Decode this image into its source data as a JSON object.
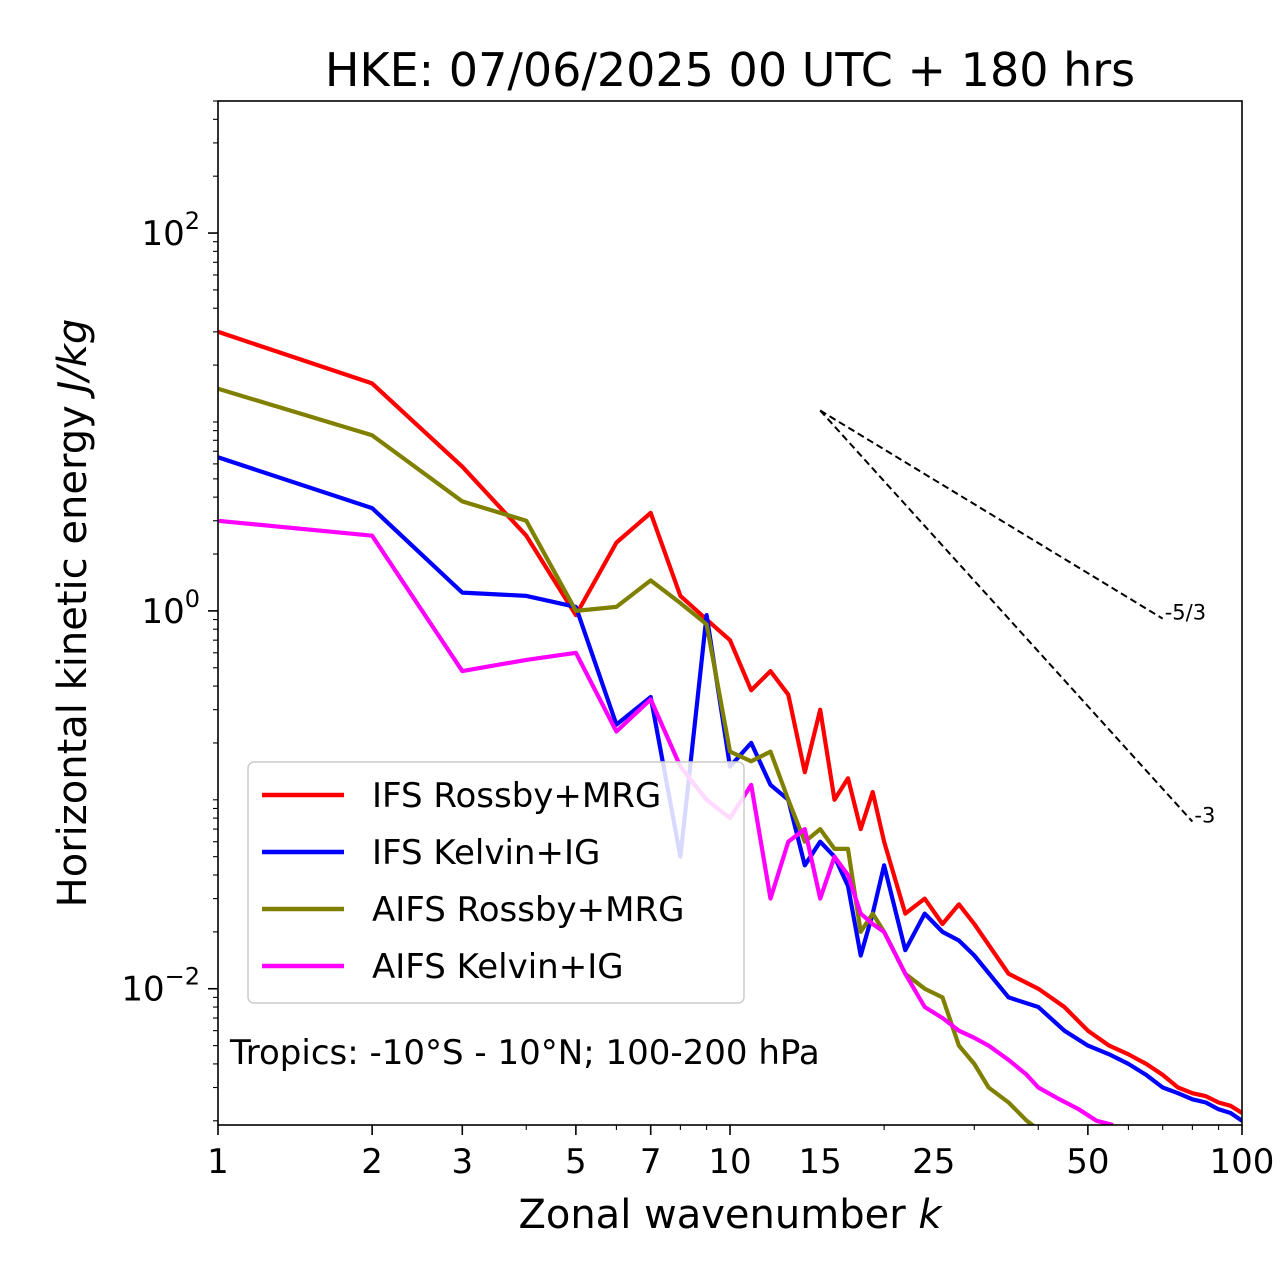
{
  "chart_data": {
    "type": "line",
    "title": "HKE: 07/06/2025 00 UTC + 180 hrs",
    "xlabel_main": "Zonal wavenumber ",
    "xlabel_var": "k",
    "ylabel_main": "Horizontal kinetic energy ",
    "ylabel_var": "J/kg",
    "xscale": "log",
    "yscale": "log",
    "xlim": [
      1,
      100
    ],
    "ylim": [
      0.0019,
      500
    ],
    "xticks": [
      1,
      2,
      3,
      5,
      7,
      10,
      15,
      25,
      50,
      100
    ],
    "xtick_labels": [
      "1",
      "2",
      "3",
      "5",
      "7",
      "10",
      "15",
      "25",
      "50",
      "100"
    ],
    "yticks": [
      {
        "value": 0.01,
        "base": "10",
        "exp": "−2"
      },
      {
        "value": 1,
        "base": "10",
        "exp": "0"
      },
      {
        "value": 100,
        "base": "10",
        "exp": "2"
      }
    ],
    "legend_position": "lower-left",
    "annotation": "Tropics: -10°S - 10°N; 100-200 hPa",
    "reference_lines": [
      {
        "label": "-5/3",
        "x": [
          15,
          70
        ],
        "y": [
          11.5,
          0.91
        ]
      },
      {
        "label": "-3",
        "x": [
          15,
          80
        ],
        "y": [
          11.5,
          0.0767
        ]
      }
    ],
    "series": [
      {
        "name": "IFS Rossby+MRG",
        "color": "#ff0000",
        "x": [
          1,
          2,
          3,
          4,
          5,
          6,
          7,
          8,
          9,
          10,
          11,
          12,
          13,
          14,
          15,
          16,
          17,
          18,
          19,
          20,
          22,
          24,
          26,
          28,
          30,
          35,
          40,
          45,
          50,
          55,
          60,
          65,
          70,
          75,
          80,
          85,
          90,
          95,
          100
        ],
        "y": [
          30,
          16,
          5.8,
          2.5,
          0.95,
          2.3,
          3.3,
          1.2,
          0.9,
          0.7,
          0.38,
          0.48,
          0.36,
          0.14,
          0.3,
          0.1,
          0.13,
          0.07,
          0.11,
          0.06,
          0.025,
          0.03,
          0.022,
          0.028,
          0.022,
          0.012,
          0.01,
          0.008,
          0.006,
          0.005,
          0.0045,
          0.004,
          0.0035,
          0.003,
          0.0028,
          0.0027,
          0.0025,
          0.0024,
          0.0022
        ]
      },
      {
        "name": "IFS Kelvin+IG",
        "color": "#0000ff",
        "x": [
          1,
          2,
          3,
          4,
          5,
          6,
          7,
          8,
          9,
          10,
          11,
          12,
          13,
          14,
          15,
          16,
          17,
          18,
          19,
          20,
          22,
          24,
          26,
          28,
          30,
          35,
          40,
          45,
          50,
          55,
          60,
          65,
          70,
          75,
          80,
          85,
          90,
          95,
          100
        ],
        "y": [
          6.5,
          3.5,
          1.25,
          1.2,
          1.05,
          0.25,
          0.35,
          0.05,
          0.95,
          0.15,
          0.2,
          0.12,
          0.1,
          0.045,
          0.06,
          0.05,
          0.035,
          0.015,
          0.025,
          0.045,
          0.016,
          0.025,
          0.02,
          0.018,
          0.015,
          0.009,
          0.008,
          0.006,
          0.005,
          0.0045,
          0.004,
          0.0035,
          0.003,
          0.0028,
          0.0026,
          0.0025,
          0.0023,
          0.0022,
          0.002
        ]
      },
      {
        "name": "AIFS Rossby+MRG",
        "color": "#808000",
        "x": [
          1,
          2,
          3,
          4,
          5,
          6,
          7,
          8,
          9,
          10,
          11,
          12,
          13,
          14,
          15,
          16,
          17,
          18,
          19,
          20,
          22,
          24,
          26,
          28,
          30,
          32,
          35,
          38,
          40,
          42,
          44,
          46,
          48
        ],
        "y": [
          15,
          8.5,
          3.8,
          3,
          1,
          1.05,
          1.45,
          1.1,
          0.85,
          0.18,
          0.16,
          0.18,
          0.1,
          0.06,
          0.07,
          0.055,
          0.055,
          0.02,
          0.025,
          0.02,
          0.012,
          0.01,
          0.009,
          0.005,
          0.004,
          0.003,
          0.0025,
          0.002,
          0.0018,
          0.0016,
          0.0015,
          0.0014,
          0.0013
        ]
      },
      {
        "name": "AIFS Kelvin+IG",
        "color": "#ff00ff",
        "x": [
          1,
          2,
          3,
          4,
          5,
          6,
          7,
          8,
          9,
          10,
          11,
          12,
          13,
          14,
          15,
          16,
          17,
          18,
          19,
          20,
          22,
          24,
          26,
          28,
          30,
          32,
          35,
          38,
          40,
          44,
          48,
          52,
          56
        ],
        "y": [
          3,
          2.5,
          0.48,
          0.55,
          0.6,
          0.23,
          0.34,
          0.15,
          0.1,
          0.08,
          0.12,
          0.03,
          0.06,
          0.07,
          0.03,
          0.05,
          0.04,
          0.025,
          0.022,
          0.02,
          0.012,
          0.008,
          0.007,
          0.006,
          0.0055,
          0.005,
          0.0042,
          0.0035,
          0.003,
          0.0026,
          0.0023,
          0.002,
          0.0019
        ]
      }
    ]
  }
}
